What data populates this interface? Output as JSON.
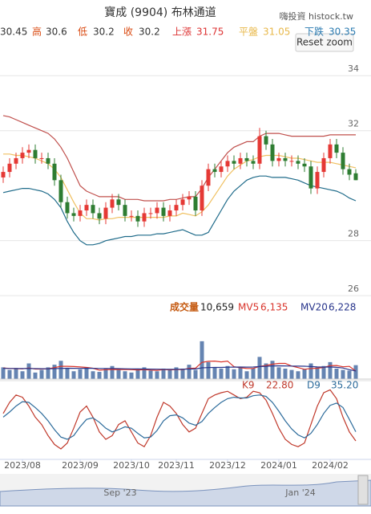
{
  "header": {
    "title": "寶成 (9904) 布林通道",
    "brand": "嗨投資 histock.tw"
  },
  "quote": [
    {
      "value": 30.45
    },
    {
      "label": "高",
      "value": 30.6
    },
    {
      "label": "低",
      "value": 30.2
    },
    {
      "label": "收",
      "value": 30.2
    },
    {
      "label": "上漲",
      "value": 31.75
    },
    {
      "label": "平盤",
      "value": 31.05
    },
    {
      "label": "下跌",
      "value": 30.35
    }
  ],
  "reset_button": "Reset zoom",
  "navigator": {
    "labels": [
      "Sep '23",
      "Jan '24"
    ]
  },
  "chart_data": [
    {
      "type": "candlestick",
      "xlim": [
        -0.5,
        55.5
      ],
      "ylim": [
        25.8,
        35.0
      ],
      "yticks": [
        26,
        28,
        32,
        34
      ],
      "grid": true,
      "up_color": "#e53935",
      "down_color": "#2e7d32",
      "open": [
        30.3,
        30.5,
        30.8,
        31.0,
        31.2,
        31.3,
        31.0,
        31.0,
        30.8,
        30.2,
        29.4,
        29.0,
        28.9,
        29.1,
        29.3,
        29.0,
        28.8,
        29.2,
        29.5,
        29.3,
        28.9,
        28.9,
        28.7,
        29.0,
        29.0,
        29.2,
        28.9,
        29.1,
        29.3,
        29.5,
        29.6,
        29.1,
        30.0,
        30.6,
        30.5,
        30.7,
        30.9,
        30.8,
        31.0,
        30.9,
        30.8,
        31.8,
        31.5,
        30.9,
        31.0,
        30.9,
        30.9,
        30.8,
        30.7,
        29.9,
        30.5,
        31.0,
        31.5,
        31.2,
        30.6,
        30.45
      ],
      "high": [
        30.7,
        31.0,
        31.2,
        31.4,
        31.5,
        31.5,
        31.2,
        31.2,
        31.0,
        30.4,
        29.6,
        29.2,
        29.3,
        29.5,
        29.5,
        29.2,
        29.4,
        29.7,
        29.7,
        29.5,
        29.1,
        29.1,
        29.2,
        29.2,
        29.4,
        29.4,
        29.3,
        29.5,
        29.7,
        29.8,
        29.8,
        30.2,
        30.8,
        30.8,
        30.9,
        31.1,
        31.1,
        31.2,
        31.2,
        31.1,
        32.1,
        32.0,
        31.7,
        31.2,
        31.2,
        31.1,
        31.1,
        31.0,
        30.9,
        30.7,
        31.2,
        31.7,
        31.7,
        31.4,
        30.8,
        30.6
      ],
      "low": [
        30.1,
        30.3,
        30.6,
        30.8,
        31.0,
        30.8,
        30.8,
        30.6,
        30.0,
        29.2,
        28.8,
        28.7,
        28.7,
        28.9,
        28.8,
        28.6,
        28.6,
        29.0,
        29.1,
        28.7,
        28.7,
        28.5,
        28.5,
        28.8,
        28.8,
        28.7,
        28.7,
        28.9,
        29.1,
        29.3,
        28.9,
        28.9,
        29.8,
        30.3,
        30.3,
        30.5,
        30.6,
        30.6,
        30.7,
        30.6,
        30.6,
        31.3,
        30.7,
        30.7,
        30.7,
        30.7,
        30.6,
        30.5,
        29.7,
        29.7,
        30.3,
        30.8,
        31.0,
        30.4,
        30.2,
        30.2
      ],
      "close": [
        30.5,
        30.8,
        31.0,
        31.2,
        31.3,
        31.0,
        31.0,
        30.8,
        30.2,
        29.4,
        29.0,
        28.9,
        29.1,
        29.3,
        29.0,
        28.8,
        29.2,
        29.5,
        29.3,
        28.9,
        28.9,
        28.7,
        29.0,
        29.0,
        29.2,
        28.9,
        29.1,
        29.3,
        29.5,
        29.6,
        29.1,
        30.0,
        30.6,
        30.5,
        30.7,
        30.9,
        30.8,
        31.0,
        30.9,
        30.8,
        31.8,
        31.5,
        30.9,
        31.0,
        30.9,
        30.9,
        30.8,
        30.7,
        29.9,
        30.5,
        31.0,
        31.5,
        31.2,
        30.6,
        30.4,
        30.2
      ],
      "bands": [
        {
          "color": "#c0504d",
          "values": [
            32.55,
            32.5,
            32.4,
            32.3,
            32.2,
            32.1,
            32.0,
            31.9,
            31.7,
            31.4,
            31.0,
            30.5,
            30.0,
            29.8,
            29.7,
            29.6,
            29.6,
            29.6,
            29.6,
            29.5,
            29.5,
            29.5,
            29.45,
            29.45,
            29.45,
            29.45,
            29.5,
            29.5,
            29.55,
            29.6,
            29.6,
            29.9,
            30.3,
            30.6,
            30.9,
            31.2,
            31.4,
            31.5,
            31.6,
            31.6,
            31.8,
            31.9,
            31.9,
            31.9,
            31.85,
            31.8,
            31.8,
            31.8,
            31.8,
            31.8,
            31.8,
            31.85,
            31.85,
            31.85,
            31.85,
            31.85
          ]
        },
        {
          "color": "#f0c060",
          "values": [
            31.15,
            31.15,
            31.1,
            31.1,
            31.05,
            31.0,
            30.9,
            30.8,
            30.6,
            30.3,
            29.85,
            29.4,
            29.0,
            28.8,
            28.8,
            28.75,
            28.8,
            28.8,
            28.85,
            28.85,
            28.85,
            28.85,
            28.85,
            28.85,
            28.85,
            28.85,
            28.9,
            28.9,
            29.0,
            28.95,
            28.9,
            29.05,
            29.3,
            29.65,
            30.0,
            30.35,
            30.6,
            30.75,
            30.9,
            30.95,
            31.05,
            31.1,
            31.1,
            31.1,
            31.05,
            31.0,
            31.0,
            30.95,
            30.9,
            30.85,
            30.85,
            30.85,
            30.8,
            30.75,
            30.7,
            30.65
          ]
        },
        {
          "color": "#1f6b8a",
          "values": [
            29.75,
            29.8,
            29.85,
            29.9,
            29.9,
            29.85,
            29.8,
            29.7,
            29.5,
            29.2,
            28.7,
            28.3,
            28.0,
            27.85,
            27.85,
            27.9,
            28.0,
            28.05,
            28.1,
            28.15,
            28.15,
            28.2,
            28.2,
            28.2,
            28.25,
            28.25,
            28.3,
            28.35,
            28.4,
            28.3,
            28.2,
            28.2,
            28.3,
            28.7,
            29.1,
            29.5,
            29.8,
            30.0,
            30.2,
            30.3,
            30.35,
            30.35,
            30.3,
            30.3,
            30.3,
            30.25,
            30.2,
            30.1,
            30.0,
            29.95,
            29.9,
            29.85,
            29.8,
            29.7,
            29.55,
            29.45
          ]
        }
      ]
    },
    {
      "type": "bar",
      "xlim": [
        -0.5,
        55.5
      ],
      "ylim": [
        0,
        32000
      ],
      "legend_values": [
        {
          "value": 10659,
          "label": "10,659"
        },
        {
          "value": 6135,
          "label": "6,135"
        },
        {
          "value": 6228,
          "label": "6,228"
        }
      ],
      "series": [
        {
          "name": "成交量",
          "color": "#4a6fa5",
          "values": [
            9000,
            7000,
            8500,
            6000,
            12000,
            5000,
            7000,
            9000,
            11000,
            14000,
            8000,
            6000,
            7500,
            9000,
            6000,
            5500,
            8000,
            10000,
            7000,
            6000,
            5000,
            7000,
            9000,
            6500,
            6000,
            8000,
            7000,
            9000,
            8000,
            11000,
            7000,
            29000,
            13000,
            9000,
            8000,
            10000,
            7500,
            9000,
            6000,
            8000,
            17000,
            12000,
            14000,
            9000,
            8000,
            7000,
            6000,
            7500,
            12000,
            9000,
            10000,
            13000,
            8000,
            7000,
            6500,
            10659
          ]
        },
        {
          "name": "MV5",
          "color": "#d9342b",
          "values": [
            8500,
            8200,
            8000,
            7800,
            8500,
            7700,
            7700,
            7900,
            8800,
            9800,
            9800,
            9600,
            9300,
            8900,
            8300,
            6800,
            7200,
            7300,
            7300,
            7400,
            7200,
            7000,
            7200,
            6900,
            6700,
            7300,
            7100,
            7300,
            7300,
            8200,
            8400,
            12800,
            13600,
            13800,
            13200,
            13800,
            9500,
            8700,
            8100,
            8100,
            9700,
            10400,
            11400,
            12000,
            12000,
            10000,
            8800,
            7500,
            8100,
            8300,
            8900,
            10300,
            10400,
            9400,
            9700,
            6135
          ]
        },
        {
          "name": "MV20",
          "color": "#27348b",
          "values": [
            8200,
            8150,
            8100,
            8050,
            8100,
            8000,
            7950,
            7900,
            8000,
            8200,
            8300,
            8250,
            8200,
            8300,
            8250,
            8150,
            8100,
            8150,
            8000,
            7900,
            7800,
            7750,
            7700,
            7600,
            7550,
            7500,
            7450,
            7500,
            7550,
            7700,
            7750,
            8600,
            8800,
            8900,
            8950,
            9100,
            9150,
            9250,
            9200,
            9250,
            9600,
            9800,
            10100,
            10150,
            10100,
            10000,
            9900,
            9850,
            9600,
            9300,
            9200,
            9300,
            9000,
            8500,
            7200,
            6228
          ]
        }
      ]
    },
    {
      "type": "line",
      "xlim": [
        -0.5,
        55.5
      ],
      "ylim": [
        0,
        100
      ],
      "xticks": [
        {
          "value": 3,
          "label": "2023/08"
        },
        {
          "value": 12,
          "label": "2023/09"
        },
        {
          "value": 20,
          "label": "2023/10"
        },
        {
          "value": 27,
          "label": "2023/11"
        },
        {
          "value": 35,
          "label": "2023/12"
        },
        {
          "value": 43,
          "label": "2024/01"
        },
        {
          "value": 51,
          "label": "2024/02"
        }
      ],
      "legend_values": [
        {
          "value": 22.8,
          "label": "22.80"
        },
        {
          "value": 35.2,
          "label": "35.20"
        }
      ],
      "series": [
        {
          "name": "K9",
          "color": "#c0392b",
          "values": [
            60,
            75,
            85,
            82,
            70,
            55,
            45,
            30,
            18,
            12,
            20,
            40,
            62,
            70,
            55,
            35,
            25,
            30,
            45,
            50,
            35,
            20,
            15,
            30,
            55,
            75,
            70,
            60,
            45,
            35,
            40,
            60,
            80,
            85,
            88,
            90,
            85,
            80,
            82,
            90,
            88,
            78,
            60,
            40,
            25,
            18,
            15,
            20,
            45,
            70,
            88,
            92,
            80,
            55,
            35,
            22.8
          ]
        },
        {
          "name": "D9",
          "color": "#2c6b9b",
          "values": [
            55,
            62,
            70,
            76,
            75,
            68,
            60,
            50,
            38,
            28,
            25,
            30,
            42,
            52,
            54,
            48,
            40,
            35,
            38,
            42,
            40,
            33,
            27,
            28,
            37,
            50,
            57,
            58,
            54,
            47,
            44,
            49,
            60,
            68,
            75,
            80,
            82,
            81,
            81,
            84,
            85,
            83,
            75,
            63,
            50,
            39,
            31,
            27,
            33,
            45,
            60,
            71,
            74,
            68,
            52,
            35.2
          ]
        }
      ]
    }
  ]
}
